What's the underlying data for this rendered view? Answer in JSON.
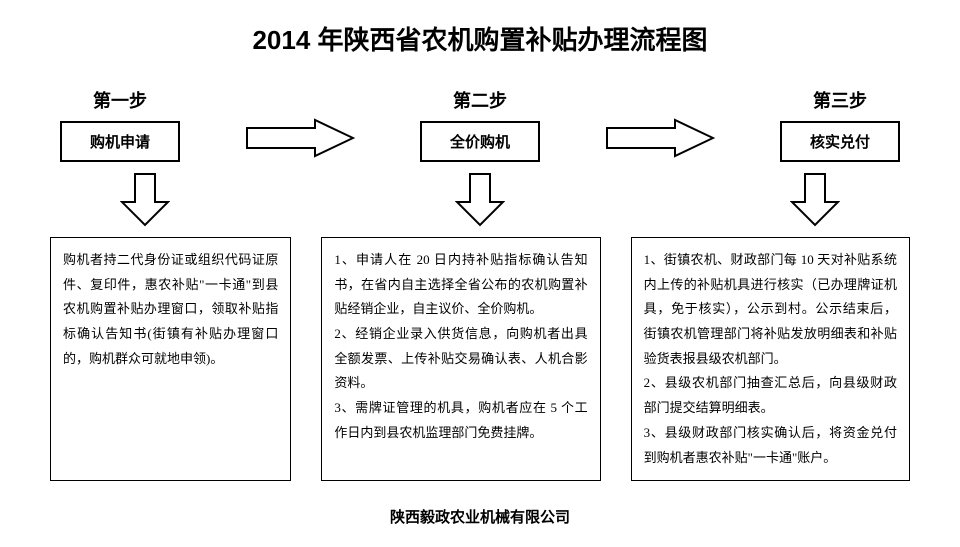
{
  "title": "2014 年陕西省农机购置补贴办理流程图",
  "steps": [
    {
      "label": "第一步",
      "name": "购机申请"
    },
    {
      "label": "第二步",
      "name": "全价购机"
    },
    {
      "label": "第三步",
      "name": "核实兑付"
    }
  ],
  "descriptions": [
    "购机者持二代身份证或组织代码证原件、复印件，惠农补贴\"一卡通\"到县农机购置补贴办理窗口，领取补贴指标确认告知书(街镇有补贴办理窗口的，购机群众可就地申领)。",
    "1、申请人在 20 日内持补贴指标确认告知书，在省内自主选择全省公布的农机购置补贴经销企业，自主议价、全价购机。\n2、经销企业录入供货信息，向购机者出具全额发票、上传补贴交易确认表、人机合影资料。\n3、需牌证管理的机具，购机者应在 5 个工作日内到县农机监理部门免费挂牌。",
    "1、街镇农机、财政部门每 10 天对补贴系统内上传的补贴机具进行核实（已办理牌证机具，免于核实），公示到村。公示结束后，街镇农机管理部门将补贴发放明细表和补贴验货表报县级农机部门。\n2、县级农机部门抽查汇总后，向县级财政部门提交结算明细表。\n3、县级财政部门核实确认后，将资金兑付到购机者惠农补贴\"一卡通\"账户。"
  ],
  "footer": "陕西毅政农业机械有限公司",
  "style": {
    "arrow_stroke": "#000000",
    "arrow_fill": "#ffffff",
    "box_border": "#000000"
  }
}
